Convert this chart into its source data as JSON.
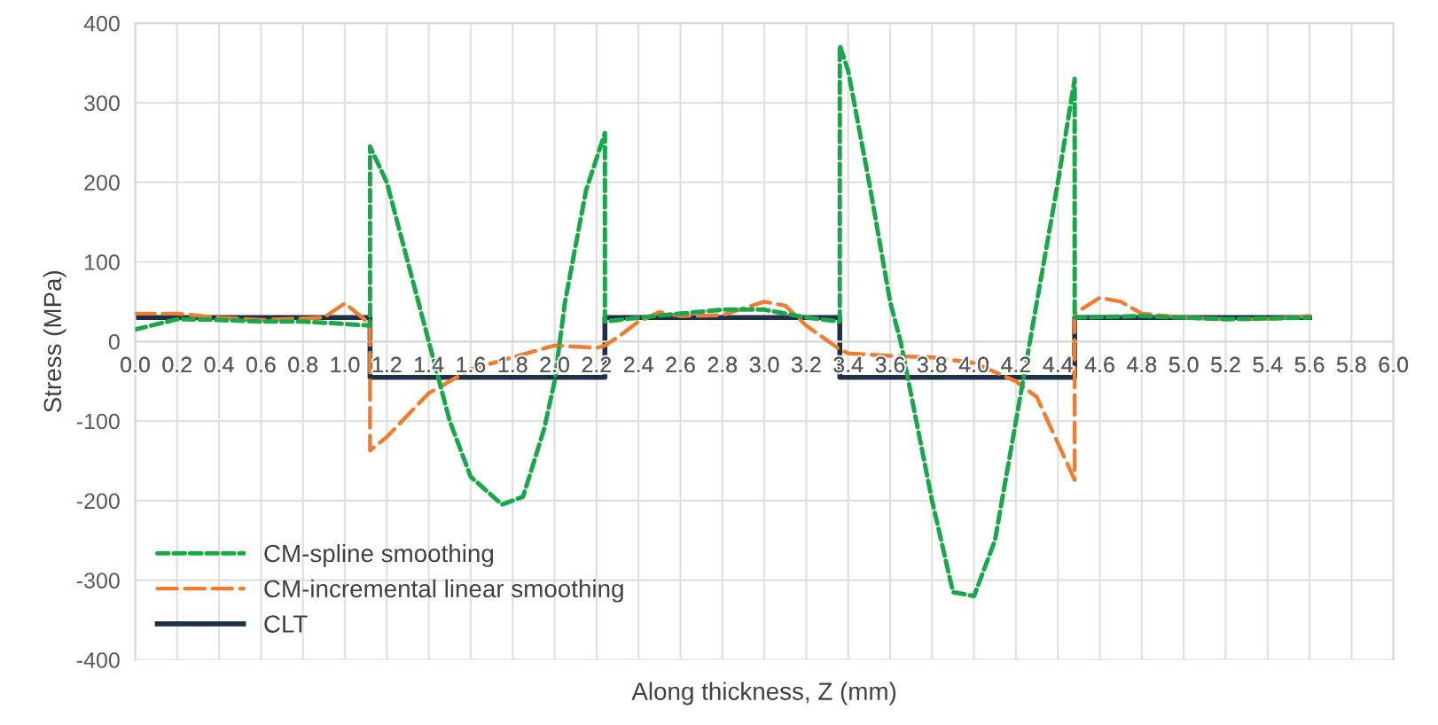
{
  "chart_data": {
    "type": "line",
    "xlabel": "Along thickness, Z (mm)",
    "ylabel": "Stress (MPa)",
    "xlim": [
      0,
      6.0
    ],
    "ylim": [
      -400,
      400
    ],
    "xticks": [
      {
        "value": 0,
        "label": "0.0"
      },
      {
        "value": 0.2,
        "label": "0.2"
      },
      {
        "value": 0.4,
        "label": "0.4"
      },
      {
        "value": 0.6,
        "label": "0.6"
      },
      {
        "value": 0.8,
        "label": "0.8"
      },
      {
        "value": 1.0,
        "label": "1.0"
      },
      {
        "value": 1.2,
        "label": "1.2"
      },
      {
        "value": 1.4,
        "label": "1.4"
      },
      {
        "value": 1.6,
        "label": "1.6"
      },
      {
        "value": 1.8,
        "label": "1.8"
      },
      {
        "value": 2.0,
        "label": "2.0"
      },
      {
        "value": 2.2,
        "label": "2.2"
      },
      {
        "value": 2.4,
        "label": "2.4"
      },
      {
        "value": 2.6,
        "label": "2.6"
      },
      {
        "value": 2.8,
        "label": "2.8"
      },
      {
        "value": 3.0,
        "label": "3.0"
      },
      {
        "value": 3.2,
        "label": "3.2"
      },
      {
        "value": 3.4,
        "label": "3.4"
      },
      {
        "value": 3.6,
        "label": "3.6"
      },
      {
        "value": 3.8,
        "label": "3.8"
      },
      {
        "value": 4.0,
        "label": "4.0"
      },
      {
        "value": 4.2,
        "label": "4.2"
      },
      {
        "value": 4.4,
        "label": "4.4"
      },
      {
        "value": 4.6,
        "label": "4.6"
      },
      {
        "value": 4.8,
        "label": "4.8"
      },
      {
        "value": 5.0,
        "label": "5.0"
      },
      {
        "value": 5.2,
        "label": "5.2"
      },
      {
        "value": 5.4,
        "label": "5.4"
      },
      {
        "value": 5.6,
        "label": "5.6"
      },
      {
        "value": 5.8,
        "label": "5.8"
      },
      {
        "value": 6.0,
        "label": "6.0"
      }
    ],
    "yticks": [
      -400,
      -300,
      -200,
      -100,
      0,
      100,
      200,
      300,
      400
    ],
    "grid": true,
    "legend": "bottom left",
    "series": [
      {
        "name": "CM-spline smoothing",
        "color": "#1aa64b",
        "line_style": "dotted",
        "x": [
          0,
          0.2,
          0.4,
          0.6,
          0.8,
          1.0,
          1.12,
          1.12,
          1.2,
          1.3,
          1.4,
          1.5,
          1.6,
          1.75,
          1.85,
          1.95,
          2.0,
          2.05,
          2.15,
          2.24,
          2.24,
          2.4,
          2.6,
          2.8,
          3.0,
          3.2,
          3.36,
          3.36,
          3.4,
          3.5,
          3.6,
          3.65,
          3.8,
          3.9,
          4.0,
          4.1,
          4.2,
          4.3,
          4.4,
          4.48,
          4.48,
          4.8,
          5.2,
          5.6
        ],
        "values": [
          15,
          28,
          27,
          25,
          25,
          22,
          20,
          245,
          200,
          100,
          0,
          -100,
          -170,
          -205,
          -195,
          -110,
          -50,
          50,
          190,
          262,
          25,
          30,
          35,
          40,
          40,
          30,
          25,
          372,
          340,
          200,
          50,
          0,
          -200,
          -315,
          -320,
          -250,
          -100,
          50,
          200,
          330,
          30,
          32,
          28,
          30
        ]
      },
      {
        "name": "CM-incremental linear smoothing",
        "color": "#ed7d31",
        "line_style": "dashed",
        "x": [
          0,
          0.2,
          0.4,
          0.6,
          0.9,
          1.0,
          1.12,
          1.12,
          1.2,
          1.4,
          1.6,
          1.8,
          2.0,
          2.2,
          2.24,
          2.3,
          2.4,
          2.5,
          2.6,
          2.8,
          3.0,
          3.1,
          3.2,
          3.36,
          3.4,
          3.6,
          3.8,
          4.0,
          4.2,
          4.3,
          4.48,
          4.48,
          4.6,
          4.7,
          4.8,
          5.0,
          5.2,
          5.4,
          5.6
        ],
        "values": [
          35,
          35,
          30,
          27,
          30,
          48,
          22,
          -137,
          -120,
          -65,
          -35,
          -20,
          -5,
          -8,
          -5,
          5,
          25,
          37,
          32,
          33,
          50,
          45,
          20,
          -10,
          -15,
          -18,
          -20,
          -27,
          -50,
          -70,
          -174,
          35,
          55,
          50,
          35,
          30,
          28,
          28,
          32
        ]
      },
      {
        "name": "CLT",
        "color": "#1f2f45",
        "line_style": "solid",
        "x": [
          0,
          1.12,
          1.12,
          2.24,
          2.24,
          3.36,
          3.36,
          4.48,
          4.48,
          5.6
        ],
        "values": [
          30,
          30,
          -45,
          -45,
          30,
          30,
          -45,
          -45,
          30,
          30
        ]
      }
    ]
  }
}
